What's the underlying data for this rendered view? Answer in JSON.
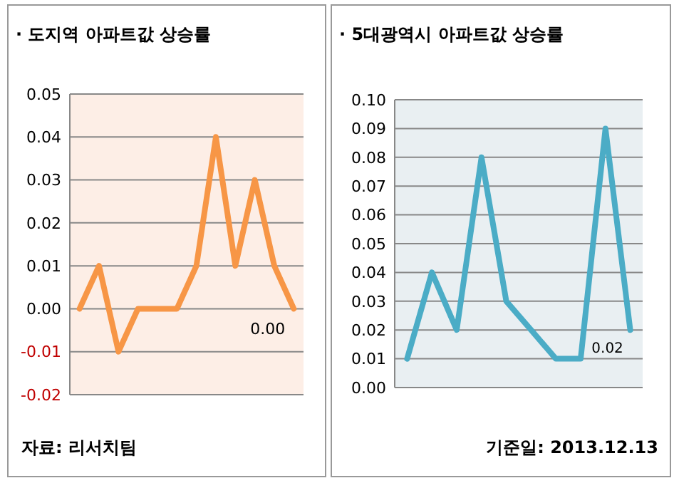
{
  "chart_data": [
    {
      "type": "line",
      "title": "· 도지역 아파트값 상승률",
      "categories": [
        null,
        null,
        null,
        null,
        null,
        null,
        null,
        null,
        null,
        null,
        null,
        null
      ],
      "series": [
        {
          "color": "#f79646",
          "values": [
            0,
            0.01,
            -0.01,
            0,
            0,
            0,
            0.01,
            0.04,
            0.01,
            0.03,
            0.01,
            0
          ],
          "value_labels": [
            null,
            null,
            null,
            null,
            null,
            null,
            null,
            null,
            null,
            null,
            null,
            "0.00"
          ]
        }
      ],
      "ylim": [
        -0.02,
        0.05
      ],
      "yticks": [
        {
          "value": -0.02,
          "label": "-0.02"
        },
        {
          "value": -0.01,
          "label": "-0.01"
        },
        {
          "value": 0,
          "label": "0.00"
        },
        {
          "value": 0.01,
          "label": "0.01"
        },
        {
          "value": 0.02,
          "label": "0.02"
        },
        {
          "value": 0.03,
          "label": "0.03"
        },
        {
          "value": 0.04,
          "label": "0.04"
        },
        {
          "value": 0.05,
          "label": "0.05"
        }
      ],
      "grid": "y",
      "tick_labels": "y",
      "marker": "none",
      "line_style": "solid",
      "annotations": [
        "자료: 리서치팀"
      ]
    },
    {
      "type": "line",
      "title": "· 5대광역시 아파트값 상승률",
      "categories": [
        null,
        null,
        null,
        null,
        null,
        null,
        null,
        null,
        null,
        null
      ],
      "series": [
        {
          "color": "#4bacc6",
          "values": [
            0.01,
            0.04,
            0.02,
            0.08,
            0.03,
            0.02,
            0.01,
            0.01,
            0.09,
            0.02
          ],
          "value_labels": [
            null,
            null,
            null,
            null,
            null,
            null,
            null,
            null,
            null,
            "0.02"
          ]
        }
      ],
      "ylim": [
        0,
        0.1
      ],
      "yticks": [
        {
          "value": 0,
          "label": "0.00"
        },
        {
          "value": 0.01,
          "label": "0.01"
        },
        {
          "value": 0.02,
          "label": "0.02"
        },
        {
          "value": 0.03,
          "label": "0.03"
        },
        {
          "value": 0.04,
          "label": "0.04"
        },
        {
          "value": 0.05,
          "label": "0.05"
        },
        {
          "value": 0.06,
          "label": "0.06"
        },
        {
          "value": 0.07,
          "label": "0.07"
        },
        {
          "value": 0.08,
          "label": "0.08"
        },
        {
          "value": 0.09,
          "label": "0.09"
        },
        {
          "value": 0.1,
          "label": "0.10"
        }
      ],
      "grid": "y",
      "tick_labels": "y",
      "marker": "none",
      "line_style": "solid",
      "annotations": [
        "기준일: 2013.12.13"
      ]
    }
  ]
}
